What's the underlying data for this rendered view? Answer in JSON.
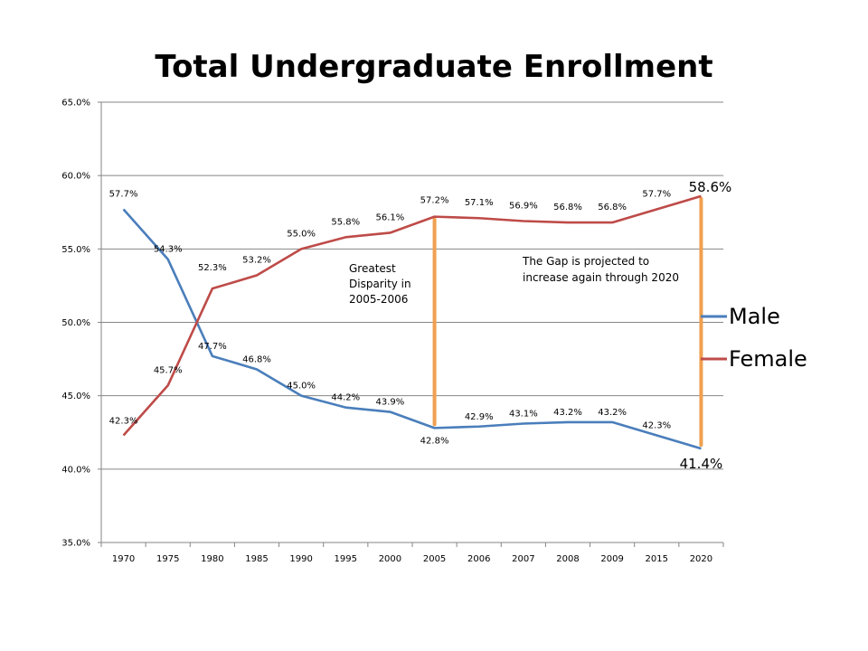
{
  "chart_data": {
    "type": "line",
    "title": "Total Undergraduate Enrollment",
    "xlabel": "",
    "ylabel": "",
    "categories": [
      "1970",
      "1975",
      "1980",
      "1985",
      "1990",
      "1995",
      "2000",
      "2005",
      "2006",
      "2007",
      "2008",
      "2009",
      "2015",
      "2020"
    ],
    "ylim": [
      35.0,
      65.0
    ],
    "yticks": [
      "35.0%",
      "40.0%",
      "45.0%",
      "50.0%",
      "55.0%",
      "60.0%",
      "65.0%"
    ],
    "grid": true,
    "legend_position": "right",
    "series": [
      {
        "name": "Male",
        "color": "#4a7ebb",
        "values": [
          57.7,
          54.3,
          47.7,
          46.8,
          45.0,
          44.2,
          43.9,
          42.8,
          42.9,
          43.1,
          43.2,
          43.2,
          42.3,
          41.4
        ],
        "labels": [
          "57.7%",
          "54.3%",
          "47.7%",
          "46.8%",
          "45.0%",
          "44.2%",
          "43.9%",
          "42.8%",
          "42.9%",
          "43.1%",
          "43.2%",
          "43.2%",
          "42.3%",
          "41.4%"
        ]
      },
      {
        "name": "Female",
        "color": "#be4b48",
        "values": [
          42.3,
          45.7,
          52.3,
          53.2,
          55.0,
          55.8,
          56.1,
          57.2,
          57.1,
          56.9,
          56.8,
          56.8,
          57.7,
          58.6
        ],
        "labels": [
          "42.3%",
          "45.7%",
          "52.3%",
          "53.2%",
          "55.0%",
          "55.8%",
          "56.1%",
          "57.2%",
          "57.1%",
          "56.9%",
          "56.8%",
          "56.8%",
          "57.7%",
          "58.6%"
        ]
      }
    ],
    "annotations": [
      {
        "lines": [
          "Greatest",
          "Disparity in",
          "2005-2006"
        ]
      },
      {
        "lines": [
          "The Gap is projected to",
          "increase again through 2020"
        ]
      }
    ],
    "gap_markers": [
      {
        "category": "2005",
        "from": 42.8,
        "to": 57.2,
        "color": "#f0a050"
      },
      {
        "category": "2020",
        "from": 41.4,
        "to": 58.6,
        "color": "#f0a050"
      }
    ]
  }
}
